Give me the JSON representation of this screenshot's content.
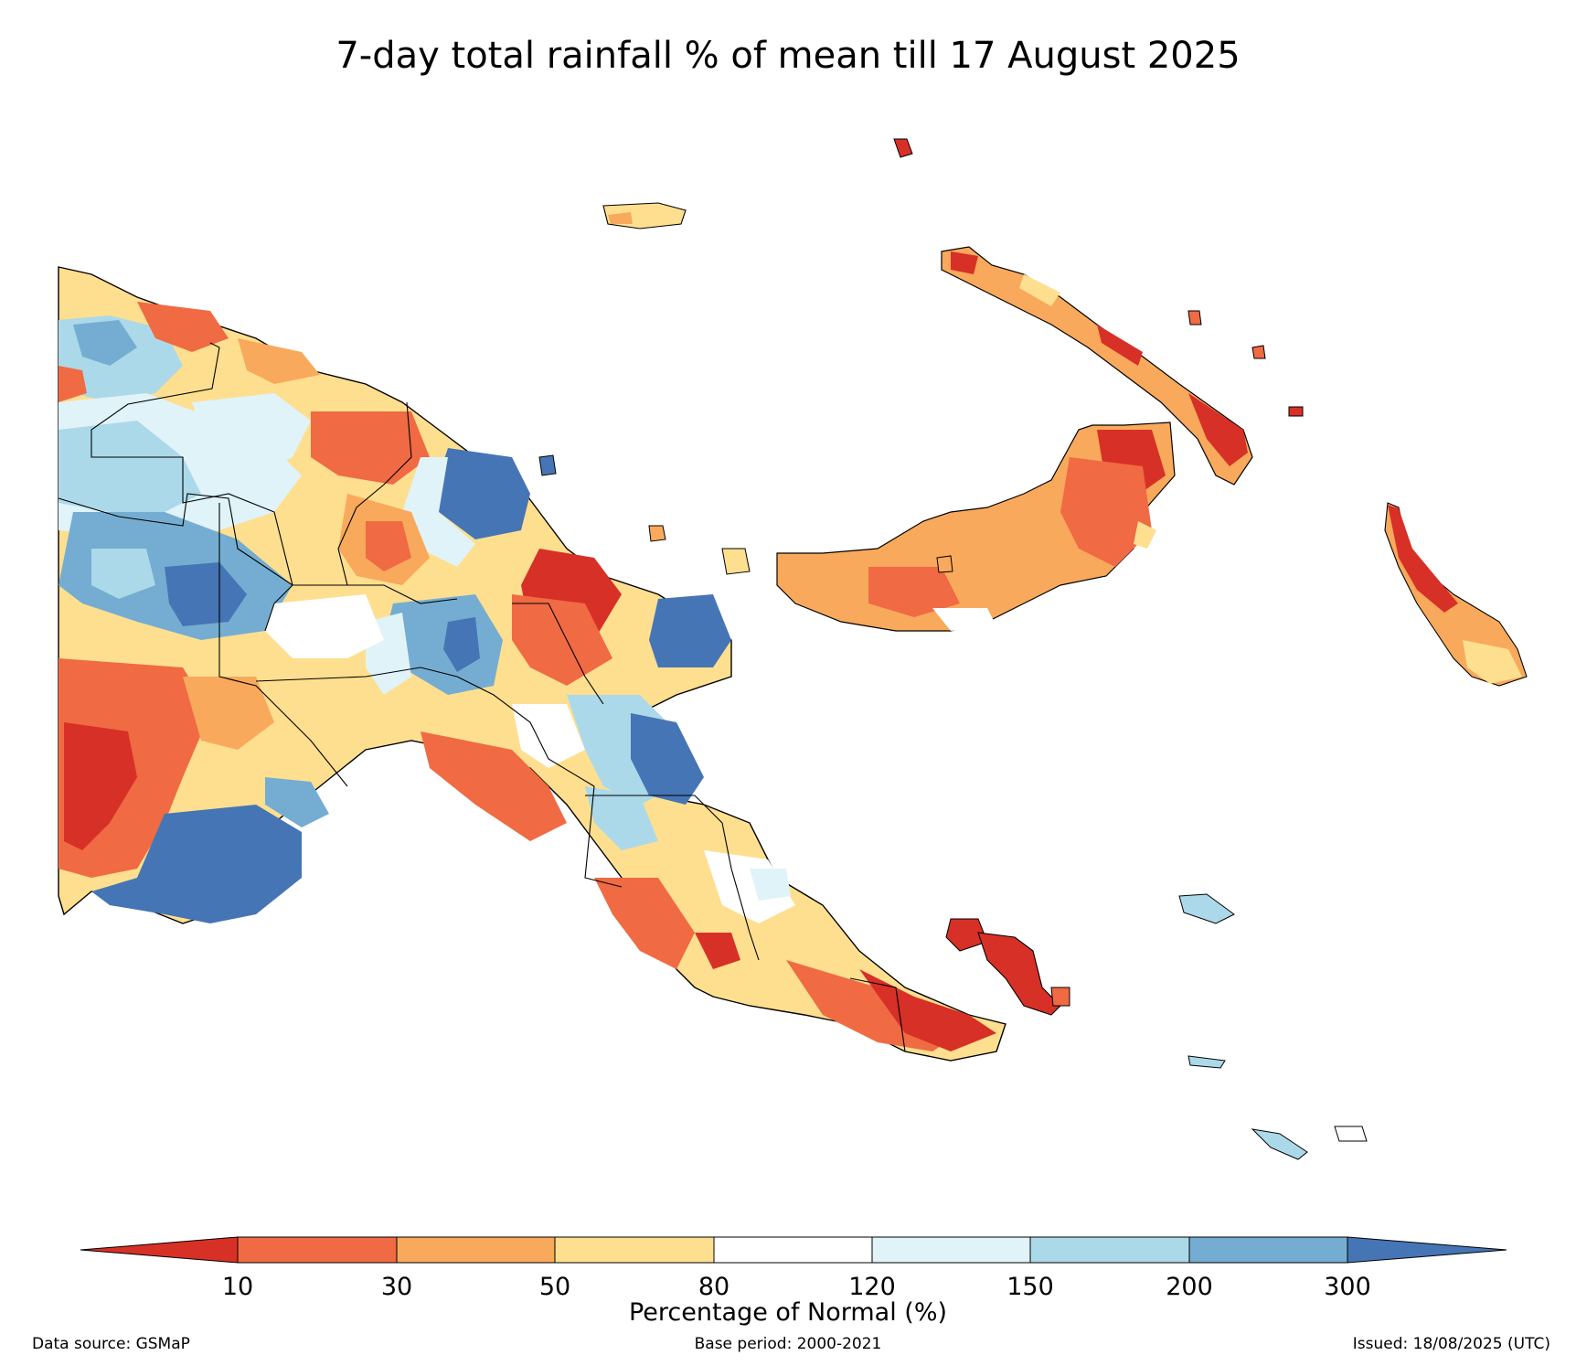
{
  "title": "7-day total rainfall % of mean till 17 August 2025",
  "colorbar": {
    "label": "Percentage of Normal (%)",
    "ticks": [
      "10",
      "30",
      "50",
      "80",
      "120",
      "150",
      "200",
      "300"
    ],
    "colors": {
      "lt10": "#d73027",
      "c10_30": "#f06a43",
      "c30_50": "#f9a95b",
      "c50_80": "#fedf8f",
      "c80_120": "#ffffff",
      "c120_150": "#e0f3f8",
      "c150_200": "#abd9e9",
      "c200_300": "#74add1",
      "gt300": "#4575b4"
    }
  },
  "footer": {
    "source": "Data source: GSMaP",
    "base_period": "Base period: 2000-2021",
    "issued": "Issued: 18/08/2025 (UTC)"
  }
}
